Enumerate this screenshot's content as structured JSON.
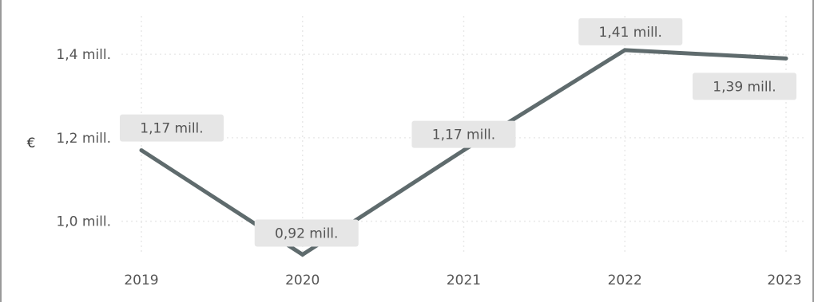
{
  "chart_data": {
    "type": "line",
    "title": "",
    "xlabel": "",
    "ylabel": "€",
    "x": [
      "2019",
      "2020",
      "2021",
      "2022",
      "2023"
    ],
    "series": [
      {
        "values": [
          1.17,
          0.92,
          1.17,
          1.41,
          1.39
        ],
        "data_labels": [
          "1,17 mill.",
          "0,92 mill.",
          "1,17 mill.",
          "1,41 mill.",
          "1,39 mill."
        ]
      }
    ],
    "yticks": [
      1.0,
      1.2,
      1.4
    ],
    "ytick_labels": [
      "1,0 mill.",
      "1,2 mill.",
      "1,4 mill."
    ],
    "ylim": [
      0.9,
      1.53
    ],
    "grid": true,
    "line_color": "#5f6b6d",
    "label_background": "#e6e6e6"
  }
}
